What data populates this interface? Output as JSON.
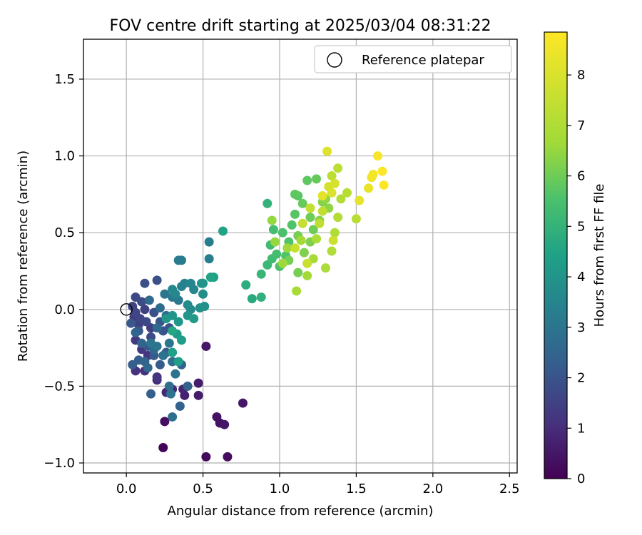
{
  "chart_data": {
    "type": "scatter",
    "title": "FOV centre drift starting at 2025/03/04 08:31:22",
    "xlabel": "Angular distance from reference (arcmin)",
    "ylabel": "Rotation from reference (arcmin)",
    "xlim": [
      -0.28,
      2.55
    ],
    "ylim": [
      -1.065,
      1.76
    ],
    "xticks": [
      0.0,
      0.5,
      1.0,
      1.5,
      2.0,
      2.5
    ],
    "xtick_labels": [
      "0.0",
      "0.5",
      "1.0",
      "1.5",
      "2.0",
      "2.5"
    ],
    "yticks": [
      -1.0,
      -0.5,
      0.0,
      0.5,
      1.0,
      1.5
    ],
    "ytick_labels": [
      "−1.0",
      "−0.5",
      "0.0",
      "0.5",
      "1.0",
      "1.5"
    ],
    "grid": true,
    "legend": {
      "placement": "top-right",
      "entries": [
        "Reference platepar"
      ]
    },
    "reference_point": {
      "x": 0.0,
      "y": 0.0
    },
    "colorbar": {
      "label": "Hours from first FF file",
      "range": [
        0,
        8.85
      ],
      "ticks": [
        0,
        1,
        2,
        3,
        4,
        5,
        6,
        7,
        8
      ],
      "tick_labels": [
        "0",
        "1",
        "2",
        "3",
        "4",
        "5",
        "6",
        "7",
        "8"
      ],
      "colormap": "viridis"
    },
    "points": [
      {
        "x": 0.24,
        "y": -0.9,
        "h": 0.1
      },
      {
        "x": 0.52,
        "y": -0.96,
        "h": 0.2
      },
      {
        "x": 0.66,
        "y": -0.96,
        "h": 0.3
      },
      {
        "x": 0.25,
        "y": -0.73,
        "h": 0.3
      },
      {
        "x": 0.59,
        "y": -0.7,
        "h": 0.4
      },
      {
        "x": 0.61,
        "y": -0.74,
        "h": 0.4
      },
      {
        "x": 0.64,
        "y": -0.75,
        "h": 0.5
      },
      {
        "x": 0.76,
        "y": -0.61,
        "h": 0.5
      },
      {
        "x": 0.52,
        "y": -0.24,
        "h": 0.5
      },
      {
        "x": 0.47,
        "y": -0.48,
        "h": 0.6
      },
      {
        "x": 0.47,
        "y": -0.56,
        "h": 0.6
      },
      {
        "x": 0.38,
        "y": -0.56,
        "h": 0.7
      },
      {
        "x": 0.37,
        "y": -0.52,
        "h": 0.8
      },
      {
        "x": 0.26,
        "y": -0.54,
        "h": 0.9
      },
      {
        "x": 0.3,
        "y": -0.52,
        "h": 0.9
      },
      {
        "x": 0.2,
        "y": -0.46,
        "h": 1.0
      },
      {
        "x": 0.12,
        "y": -0.4,
        "h": 1.1
      },
      {
        "x": 0.06,
        "y": -0.4,
        "h": 1.1
      },
      {
        "x": 0.2,
        "y": -0.44,
        "h": 1.2
      },
      {
        "x": 0.14,
        "y": -0.3,
        "h": 1.2
      },
      {
        "x": 0.06,
        "y": -0.2,
        "h": 1.3
      },
      {
        "x": 0.1,
        "y": -0.26,
        "h": 1.3
      },
      {
        "x": 0.16,
        "y": -0.12,
        "h": 1.4
      },
      {
        "x": 0.05,
        "y": -0.05,
        "h": 1.4
      },
      {
        "x": 0.08,
        "y": -0.1,
        "h": 1.5
      },
      {
        "x": 0.12,
        "y": 0.0,
        "h": 1.5
      },
      {
        "x": 0.04,
        "y": 0.02,
        "h": 1.6
      },
      {
        "x": 0.06,
        "y": -0.02,
        "h": 1.6
      },
      {
        "x": 0.09,
        "y": -0.06,
        "h": 1.6
      },
      {
        "x": 0.13,
        "y": -0.08,
        "h": 1.7
      },
      {
        "x": 0.06,
        "y": 0.08,
        "h": 1.7
      },
      {
        "x": 0.1,
        "y": 0.05,
        "h": 1.8
      },
      {
        "x": 0.16,
        "y": -0.18,
        "h": 1.8
      },
      {
        "x": 0.12,
        "y": 0.17,
        "h": 1.9
      },
      {
        "x": 0.2,
        "y": 0.19,
        "h": 1.9
      },
      {
        "x": 0.18,
        "y": -0.02,
        "h": 1.9
      },
      {
        "x": 0.22,
        "y": -0.08,
        "h": 2.0
      },
      {
        "x": 0.24,
        "y": -0.14,
        "h": 2.0
      },
      {
        "x": 0.28,
        "y": -0.12,
        "h": 2.0
      },
      {
        "x": 0.03,
        "y": -0.09,
        "h": 2.1
      },
      {
        "x": 0.08,
        "y": -0.14,
        "h": 2.1
      },
      {
        "x": 0.14,
        "y": -0.24,
        "h": 2.1
      },
      {
        "x": 0.18,
        "y": -0.3,
        "h": 2.2
      },
      {
        "x": 0.22,
        "y": -0.36,
        "h": 2.2
      },
      {
        "x": 0.26,
        "y": -0.28,
        "h": 2.2
      },
      {
        "x": 0.04,
        "y": -0.36,
        "h": 2.3
      },
      {
        "x": 0.08,
        "y": -0.33,
        "h": 2.3
      },
      {
        "x": 0.16,
        "y": -0.55,
        "h": 2.3
      },
      {
        "x": 0.35,
        "y": -0.63,
        "h": 2.4
      },
      {
        "x": 0.4,
        "y": -0.5,
        "h": 2.4
      },
      {
        "x": 0.36,
        "y": -0.36,
        "h": 2.4
      },
      {
        "x": 0.06,
        "y": -0.15,
        "h": 2.5
      },
      {
        "x": 0.1,
        "y": -0.22,
        "h": 2.5
      },
      {
        "x": 0.12,
        "y": -0.34,
        "h": 2.5
      },
      {
        "x": 0.14,
        "y": -0.38,
        "h": 2.6
      },
      {
        "x": 0.18,
        "y": -0.26,
        "h": 2.6
      },
      {
        "x": 0.2,
        "y": -0.12,
        "h": 2.6
      },
      {
        "x": 0.15,
        "y": 0.06,
        "h": 2.7
      },
      {
        "x": 0.22,
        "y": 0.01,
        "h": 2.7
      },
      {
        "x": 0.26,
        "y": -0.04,
        "h": 2.7
      },
      {
        "x": 0.3,
        "y": -0.34,
        "h": 2.8
      },
      {
        "x": 0.28,
        "y": -0.5,
        "h": 2.8
      },
      {
        "x": 0.3,
        "y": -0.7,
        "h": 2.8
      },
      {
        "x": 0.29,
        "y": -0.55,
        "h": 2.9
      },
      {
        "x": 0.32,
        "y": -0.42,
        "h": 2.9
      },
      {
        "x": 0.24,
        "y": -0.3,
        "h": 2.9
      },
      {
        "x": 0.2,
        "y": -0.24,
        "h": 3.0
      },
      {
        "x": 0.16,
        "y": -0.22,
        "h": 3.0
      },
      {
        "x": 0.28,
        "y": -0.22,
        "h": 3.0
      },
      {
        "x": 0.25,
        "y": 0.1,
        "h": 3.0
      },
      {
        "x": 0.3,
        "y": 0.08,
        "h": 3.1
      },
      {
        "x": 0.34,
        "y": 0.06,
        "h": 3.1
      },
      {
        "x": 0.36,
        "y": 0.32,
        "h": 3.2
      },
      {
        "x": 0.34,
        "y": 0.32,
        "h": 3.2
      },
      {
        "x": 0.54,
        "y": 0.44,
        "h": 3.3
      },
      {
        "x": 0.54,
        "y": 0.33,
        "h": 3.3
      },
      {
        "x": 0.36,
        "y": 0.15,
        "h": 3.4
      },
      {
        "x": 0.38,
        "y": 0.17,
        "h": 3.4
      },
      {
        "x": 0.42,
        "y": 0.17,
        "h": 3.5
      },
      {
        "x": 0.44,
        "y": 0.13,
        "h": 3.5
      },
      {
        "x": 0.3,
        "y": 0.13,
        "h": 3.6
      },
      {
        "x": 0.32,
        "y": 0.1,
        "h": 3.6
      },
      {
        "x": 0.4,
        "y": 0.03,
        "h": 3.7
      },
      {
        "x": 0.42,
        "y": 0.0,
        "h": 3.7
      },
      {
        "x": 0.48,
        "y": 0.01,
        "h": 3.8
      },
      {
        "x": 0.5,
        "y": 0.1,
        "h": 3.8
      },
      {
        "x": 0.51,
        "y": 0.02,
        "h": 3.9
      },
      {
        "x": 0.49,
        "y": 0.17,
        "h": 3.9
      },
      {
        "x": 0.5,
        "y": 0.17,
        "h": 4.0
      },
      {
        "x": 0.4,
        "y": -0.04,
        "h": 4.0
      },
      {
        "x": 0.3,
        "y": -0.04,
        "h": 4.0
      },
      {
        "x": 0.34,
        "y": -0.08,
        "h": 4.1
      },
      {
        "x": 0.26,
        "y": -0.06,
        "h": 4.1
      },
      {
        "x": 0.44,
        "y": -0.06,
        "h": 4.2
      },
      {
        "x": 0.33,
        "y": -0.16,
        "h": 4.2
      },
      {
        "x": 0.36,
        "y": -0.2,
        "h": 4.3
      },
      {
        "x": 0.34,
        "y": -0.34,
        "h": 4.3
      },
      {
        "x": 0.3,
        "y": -0.28,
        "h": 4.4
      },
      {
        "x": 0.57,
        "y": 0.21,
        "h": 4.4
      },
      {
        "x": 0.55,
        "y": 0.21,
        "h": 4.5
      },
      {
        "x": 0.63,
        "y": 0.51,
        "h": 4.5
      },
      {
        "x": 0.3,
        "y": -0.14,
        "h": 4.6
      },
      {
        "x": 0.82,
        "y": 0.07,
        "h": 4.7
      },
      {
        "x": 0.78,
        "y": 0.16,
        "h": 4.8
      },
      {
        "x": 0.88,
        "y": 0.08,
        "h": 4.9
      },
      {
        "x": 0.92,
        "y": 0.69,
        "h": 5.0
      },
      {
        "x": 0.88,
        "y": 0.23,
        "h": 5.1
      },
      {
        "x": 0.92,
        "y": 0.29,
        "h": 5.2
      },
      {
        "x": 0.95,
        "y": 0.33,
        "h": 5.3
      },
      {
        "x": 0.94,
        "y": 0.42,
        "h": 5.3
      },
      {
        "x": 0.96,
        "y": 0.52,
        "h": 5.4
      },
      {
        "x": 0.98,
        "y": 0.36,
        "h": 5.4
      },
      {
        "x": 1.02,
        "y": 0.5,
        "h": 5.5
      },
      {
        "x": 1.0,
        "y": 0.28,
        "h": 5.5
      },
      {
        "x": 1.04,
        "y": 0.35,
        "h": 5.6
      },
      {
        "x": 1.06,
        "y": 0.44,
        "h": 5.6
      },
      {
        "x": 1.08,
        "y": 0.55,
        "h": 5.6
      },
      {
        "x": 1.1,
        "y": 0.62,
        "h": 5.7
      },
      {
        "x": 1.12,
        "y": 0.74,
        "h": 5.7
      },
      {
        "x": 1.1,
        "y": 0.75,
        "h": 5.8
      },
      {
        "x": 1.18,
        "y": 0.84,
        "h": 5.8
      },
      {
        "x": 1.24,
        "y": 0.85,
        "h": 5.9
      },
      {
        "x": 1.15,
        "y": 0.69,
        "h": 5.9
      },
      {
        "x": 1.2,
        "y": 0.6,
        "h": 6.0
      },
      {
        "x": 1.22,
        "y": 0.52,
        "h": 6.0
      },
      {
        "x": 1.12,
        "y": 0.48,
        "h": 6.1
      },
      {
        "x": 1.06,
        "y": 0.32,
        "h": 6.1
      },
      {
        "x": 1.12,
        "y": 0.24,
        "h": 6.1
      },
      {
        "x": 1.16,
        "y": 0.37,
        "h": 6.2
      },
      {
        "x": 1.2,
        "y": 0.44,
        "h": 6.2
      },
      {
        "x": 1.26,
        "y": 0.58,
        "h": 6.3
      },
      {
        "x": 1.28,
        "y": 0.7,
        "h": 6.3
      },
      {
        "x": 1.3,
        "y": 0.72,
        "h": 6.4
      },
      {
        "x": 1.32,
        "y": 0.66,
        "h": 6.4
      },
      {
        "x": 0.95,
        "y": 0.58,
        "h": 6.5
      },
      {
        "x": 0.97,
        "y": 0.44,
        "h": 6.5
      },
      {
        "x": 1.02,
        "y": 0.3,
        "h": 6.6
      },
      {
        "x": 1.05,
        "y": 0.4,
        "h": 6.6
      },
      {
        "x": 1.14,
        "y": 0.45,
        "h": 6.7
      },
      {
        "x": 1.18,
        "y": 0.22,
        "h": 6.7
      },
      {
        "x": 1.11,
        "y": 0.12,
        "h": 6.8
      },
      {
        "x": 1.22,
        "y": 0.33,
        "h": 6.8
      },
      {
        "x": 1.24,
        "y": 0.46,
        "h": 6.9
      },
      {
        "x": 1.3,
        "y": 0.27,
        "h": 6.9
      },
      {
        "x": 1.34,
        "y": 0.38,
        "h": 7.0
      },
      {
        "x": 1.36,
        "y": 0.5,
        "h": 7.0
      },
      {
        "x": 1.38,
        "y": 0.6,
        "h": 7.1
      },
      {
        "x": 1.4,
        "y": 0.72,
        "h": 7.1
      },
      {
        "x": 1.44,
        "y": 0.76,
        "h": 7.2
      },
      {
        "x": 1.5,
        "y": 0.59,
        "h": 7.2
      },
      {
        "x": 1.34,
        "y": 0.87,
        "h": 7.3
      },
      {
        "x": 1.38,
        "y": 0.92,
        "h": 7.3
      },
      {
        "x": 1.28,
        "y": 0.64,
        "h": 7.4
      },
      {
        "x": 1.26,
        "y": 0.56,
        "h": 7.4
      },
      {
        "x": 1.2,
        "y": 0.66,
        "h": 7.5
      },
      {
        "x": 1.15,
        "y": 0.56,
        "h": 7.5
      },
      {
        "x": 1.1,
        "y": 0.4,
        "h": 7.6
      },
      {
        "x": 1.18,
        "y": 0.3,
        "h": 7.6
      },
      {
        "x": 1.35,
        "y": 0.45,
        "h": 7.7
      },
      {
        "x": 1.32,
        "y": 0.8,
        "h": 7.8
      },
      {
        "x": 1.36,
        "y": 0.82,
        "h": 7.9
      },
      {
        "x": 1.34,
        "y": 0.76,
        "h": 8.0
      },
      {
        "x": 1.31,
        "y": 1.03,
        "h": 8.1
      },
      {
        "x": 1.28,
        "y": 0.74,
        "h": 8.2
      },
      {
        "x": 1.52,
        "y": 0.71,
        "h": 8.3
      },
      {
        "x": 1.58,
        "y": 0.79,
        "h": 8.4
      },
      {
        "x": 1.6,
        "y": 0.86,
        "h": 8.5
      },
      {
        "x": 1.61,
        "y": 0.88,
        "h": 8.6
      },
      {
        "x": 1.64,
        "y": 1.0,
        "h": 8.7
      },
      {
        "x": 1.67,
        "y": 0.9,
        "h": 8.8
      },
      {
        "x": 1.68,
        "y": 0.81,
        "h": 8.8
      }
    ]
  }
}
